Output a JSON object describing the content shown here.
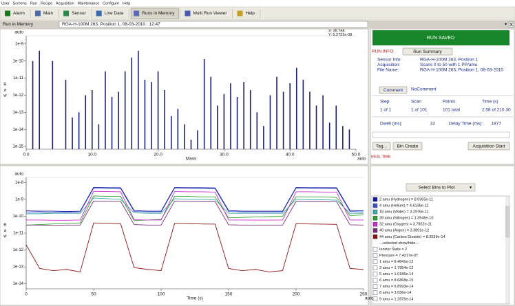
{
  "menu": [
    "User",
    "Screens",
    "Run",
    "Recipe",
    "Acquisition",
    "Maintenance",
    "Configure",
    "Help"
  ],
  "toolbar": [
    "Alarm",
    "Main",
    "Sensor",
    "Live Data",
    "Runs in Memory",
    "Multi Run Viewer",
    "Help"
  ],
  "header": {
    "title": "Run in Memory",
    "run": "RGA-H-100M 263, Position 1, 08-03-2010 : 12:47"
  },
  "run_panel": {
    "status": "RUN SAVED",
    "run_info": "RUN INFO",
    "run_summary": "Run Summary",
    "fields": [
      {
        "label": "Sensor Info:",
        "value": "RGA-H-100M 263, Position 1"
      },
      {
        "label": "Acquisition:",
        "value": "Scans 0 to 50 with 1 PP/amu"
      },
      {
        "label": "File Name:",
        "value": "RGA-H-100M 263, Position 1, 08-03-2010"
      }
    ],
    "comment_button": "Comment",
    "comment": "NoComment",
    "table": {
      "headers": [
        "Step",
        "Scan",
        "Points",
        "Time (s)"
      ],
      "row": [
        "1 of 1",
        "1 of 101",
        "101 total",
        "2.58 of 210.30"
      ]
    },
    "dwell_label": "Dwell (ms):",
    "dwell": 32,
    "delay_label": "Delay Time (ms):",
    "delay": 1877,
    "buttons": [
      "Tag...",
      "Bin Create",
      "Acquisition Start"
    ],
    "real_time": "REAL TIME"
  },
  "bins_panel": {
    "select": "Select Bins to Plot",
    "separator": "---selected show/hide---",
    "items": [
      "Ionizer State = 2",
      "Pressure = 7.4217e-07",
      "1 amu = 8.4841e-12",
      "3 amu = 1.7954e-12",
      "5 amu = 1.0186e-14",
      "6 amu = 8.6868e-15",
      "7 amu = 6.8993e-14",
      "8 amu = 3.556e-14",
      "9 amu = 1.2876e-14"
    ]
  },
  "chart_data": [
    {
      "type": "bar",
      "x_label": "Mass",
      "x_scale_label": "auto",
      "y_label": "Raw",
      "y_scale_label": "auto",
      "cursor_x": "X: 35.768",
      "cursor_y": "Y: 5.2731e-08",
      "ylog": true,
      "color": "#1c1f7a",
      "xlim": [
        0,
        50
      ],
      "xticks": [
        {
          "value": 0,
          "label": "0.0"
        },
        {
          "value": 10,
          "label": "10.0"
        },
        {
          "value": 20,
          "label": "20.0"
        },
        {
          "value": 30,
          "label": "30.0"
        },
        {
          "value": 40,
          "label": "40.0"
        },
        {
          "value": 50,
          "label": "50.0"
        }
      ],
      "ylim": [
        7e-16,
        3e-09
      ],
      "yticks": [
        1e-09,
        1e-10,
        1e-11,
        1e-12,
        1e-13,
        1e-14,
        1e-15
      ],
      "x": [
        1,
        2,
        4,
        6,
        7,
        8,
        9,
        10,
        11,
        12,
        13,
        14,
        15,
        16,
        17,
        18,
        19,
        20,
        21,
        22,
        23,
        24,
        25,
        26,
        27,
        28,
        29,
        30,
        31,
        32,
        33,
        34,
        35,
        36,
        37,
        38,
        39,
        40,
        41,
        42,
        43,
        44,
        45,
        46,
        47,
        48,
        49
      ],
      "values": [
        1e-10,
        4e-10,
        1e-10,
        8e-12,
        5e-14,
        1e-13,
        1e-12,
        2e-12,
        2e-14,
        2.5e-11,
        8e-13,
        1.6e-12,
        2.5e-11,
        1.6e-10,
        4e-10,
        8e-12,
        6e-12,
        2.5e-11,
        2e-12,
        6e-14,
        1.6e-13,
        2e-14,
        2.5e-15,
        9e-15,
        1.3e-10,
        1.2e-11,
        2.5e-13,
        1.2e-12,
        5e-12,
        8e-13,
        6e-12,
        2e-12,
        1e-13,
        1.6e-14,
        1e-12,
        1.2e-11,
        1.6e-12,
        5e-12,
        4e-11,
        8e-12,
        1.6e-12,
        2.5e-13,
        1e-12,
        2.5e-14,
        2.5e-13,
        1.6e-14,
        1e-14
      ]
    },
    {
      "type": "line",
      "x_label": "Time (s)",
      "x_scale_label": "auto",
      "y_label": "Raw",
      "y_scale_label": "auto",
      "ylog": true,
      "xlim": [
        0,
        250
      ],
      "xticks": [
        0,
        50,
        100,
        150,
        200,
        250
      ],
      "ylim": [
        5e-15,
        2e-08
      ],
      "yticks": [
        1e-08,
        1e-09,
        1e-10,
        1e-11,
        1e-12,
        1e-13,
        1e-14
      ],
      "x": [
        0,
        10,
        20,
        30,
        40,
        50,
        60,
        70,
        80,
        90,
        100,
        110,
        120,
        130,
        140,
        150,
        160,
        170,
        180,
        190,
        200,
        210,
        220,
        230,
        240,
        250
      ],
      "series": [
        {
          "name": "2 amu (Hydrogen) = 8.9365e-11",
          "color": "#1414a0",
          "values": [
            2.1e-10,
            2e-10,
            2e-10,
            1.9e-10,
            2e-10,
            5.2e-09,
            5e-09,
            4.9e-09,
            2.2e-10,
            2e-10,
            2e-10,
            5.1e-09,
            5e-09,
            5e-09,
            4.8e-09,
            2.2e-10,
            2e-10,
            2e-10,
            2e-10,
            2e-10,
            5.1e-09,
            5e-09,
            5e-09,
            4.9e-09,
            2.2e-10,
            2.1e-10
          ]
        },
        {
          "name": "4 amu (Helium) = 4.6136e-11",
          "color": "#3c50c8",
          "values": [
            1.8e-10,
            1.8e-10,
            1.7e-10,
            1.7e-10,
            1.8e-10,
            4.6e-09,
            4.5e-09,
            4.4e-09,
            1.9e-10,
            1.8e-10,
            1.8e-10,
            4.6e-09,
            4.5e-09,
            4.4e-09,
            4.3e-09,
            1.9e-10,
            1.8e-10,
            1.8e-10,
            1.8e-10,
            1.8e-10,
            4.6e-09,
            4.5e-09,
            4.4e-09,
            4.4e-09,
            1.9e-10,
            1.8e-10
          ]
        },
        {
          "name": "18 amu (Water) = 3.2976e-11",
          "color": "#3aa9a9",
          "values": [
            1.4e-10,
            1.4e-10,
            1.5e-10,
            1.5e-10,
            1.5e-10,
            1.2e-09,
            1.1e-09,
            1e-09,
            1.6e-10,
            1.5e-10,
            1.5e-10,
            1.1e-09,
            1e-09,
            1e-09,
            9.5e-10,
            1.5e-10,
            1.5e-10,
            1.5e-10,
            1.5e-10,
            1.5e-10,
            1e-09,
            9.5e-10,
            9.5e-10,
            9e-10,
            1.5e-10,
            1.5e-10
          ]
        },
        {
          "name": "28 amu (Nitrogen) = 1.3546e-10",
          "color": "#2ca02c",
          "values": [
            3e-11,
            3.2e-11,
            3.5e-11,
            3.8e-11,
            4e-11,
            1.6e-09,
            1.5e-09,
            1.5e-09,
            5.5e-11,
            6e-11,
            6.5e-11,
            1.5e-09,
            1.5e-09,
            1.4e-09,
            1.4e-09,
            8e-11,
            8.5e-11,
            9e-11,
            9.5e-11,
            1e-10,
            1.4e-09,
            1.4e-09,
            1.4e-09,
            1.3e-09,
            1.1e-10,
            1.2e-10
          ]
        },
        {
          "name": "32 amu (Oxygen) = 3.7852e-11",
          "color": "#cc2ccc",
          "values": [
            6e-11,
            6e-11,
            5.8e-11,
            5.8e-11,
            6e-11,
            3e-09,
            2.9e-09,
            2.8e-09,
            6.2e-11,
            6e-11,
            6e-11,
            2.9e-09,
            2.8e-09,
            2.8e-09,
            2.7e-09,
            6e-11,
            6e-11,
            5.9e-11,
            5.9e-11,
            6e-11,
            2.8e-09,
            2.8e-09,
            2.7e-09,
            2.7e-09,
            6e-11,
            6e-11
          ]
        },
        {
          "name": "40 amu (Argon) = 3.3891e-12",
          "color": "#7a2c7a",
          "values": [
            3e-11,
            3e-11,
            2.9e-11,
            3e-11,
            3e-11,
            8e-10,
            7.8e-10,
            7.6e-10,
            3.2e-11,
            3e-11,
            3e-11,
            7.8e-10,
            7.6e-10,
            7.5e-10,
            7.4e-10,
            3.1e-11,
            3e-11,
            3e-11,
            3e-11,
            3e-11,
            7.6e-10,
            7.5e-10,
            7.4e-10,
            7.3e-10,
            3.1e-11,
            3e-11
          ]
        },
        {
          "name": "44 amu (Carbon Dioxide) = 8.3539e-14",
          "color": "#8b1414",
          "values": [
            2e-12,
            8e-14,
            6e-14,
            7e-14,
            5e-14,
            4e-11,
            3.8e-11,
            3.6e-11,
            9e-14,
            7e-14,
            6e-14,
            3.8e-11,
            3.6e-11,
            3.5e-11,
            3.4e-11,
            8e-14,
            6e-14,
            7e-14,
            5e-14,
            6e-14,
            3.6e-11,
            3.5e-11,
            3.4e-11,
            3.3e-11,
            8e-14,
            7e-14
          ]
        }
      ]
    }
  ]
}
